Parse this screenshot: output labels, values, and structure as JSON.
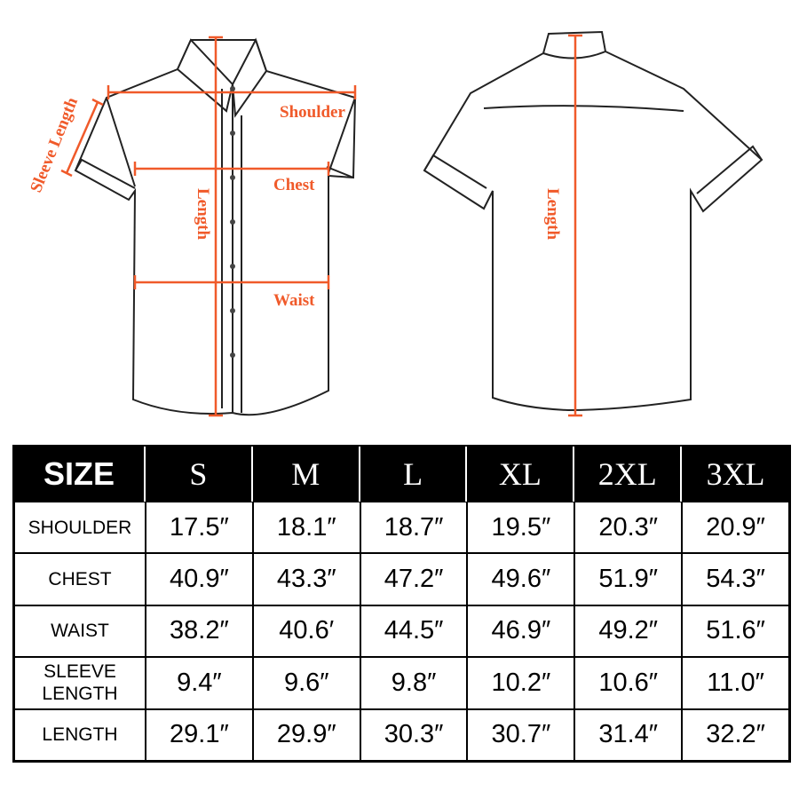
{
  "diagram": {
    "front_labels": {
      "sleeve_length": "Sleeve Length",
      "shoulder": "Shoulder",
      "chest": "Chest",
      "length": "Length",
      "waist": "Waist"
    },
    "back_labels": {
      "length": "Length"
    },
    "accent_color": "#f05a2a"
  },
  "table": {
    "header": [
      "SIZE",
      "S",
      "M",
      "L",
      "XL",
      "2XL",
      "3XL"
    ],
    "rows": [
      {
        "label": "SHOULDER",
        "values": [
          "17.5″",
          "18.1″",
          "18.7″",
          "19.5″",
          "20.3″",
          "20.9″"
        ]
      },
      {
        "label": "CHEST",
        "values": [
          "40.9″",
          "43.3″",
          "47.2″",
          "49.6″",
          "51.9″",
          "54.3″"
        ]
      },
      {
        "label": "WAIST",
        "values": [
          "38.2″",
          "40.6′",
          "44.5″",
          "46.9″",
          "49.2″",
          "51.6″"
        ]
      },
      {
        "label": "SLEEVE LENGTH",
        "values": [
          "9.4″",
          "9.6″",
          "9.8″",
          "10.2″",
          "10.6″",
          "11.0″"
        ]
      },
      {
        "label": "LENGTH",
        "values": [
          "29.1″",
          "29.9″",
          "30.3″",
          "30.7″",
          "31.4″",
          "32.2″"
        ]
      }
    ]
  }
}
